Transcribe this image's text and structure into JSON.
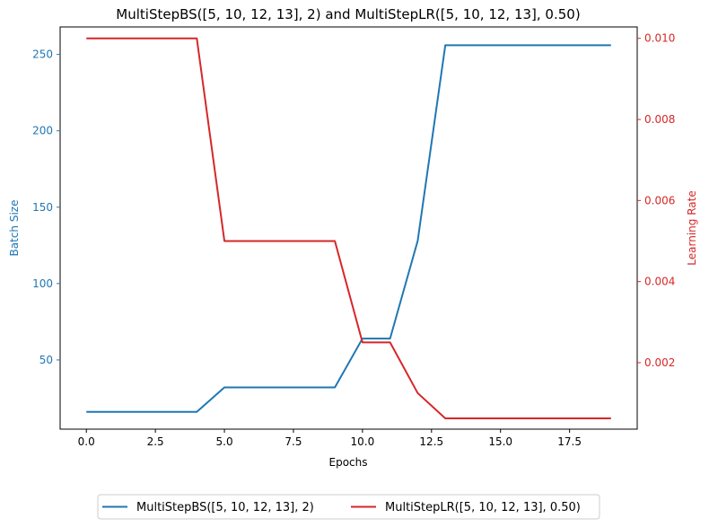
{
  "chart_data": {
    "type": "line",
    "title": "MultiStepBS([5, 10, 12, 13], 2) and MultiStepLR([5, 10, 12, 13], 0.50)",
    "xlabel": "Epochs",
    "ylabel_left": "Batch Size",
    "ylabel_right": "Learning Rate",
    "xlim": [
      -0.95,
      19.95
    ],
    "ylim_left": [
      4.7,
      268.0
    ],
    "ylim_right": [
      0.00036,
      0.010282
    ],
    "xticks": [
      0.0,
      2.5,
      5.0,
      7.5,
      10.0,
      12.5,
      15.0,
      17.5
    ],
    "xtick_labels": [
      "0.0",
      "2.5",
      "5.0",
      "7.5",
      "10.0",
      "12.5",
      "15.0",
      "17.5"
    ],
    "yticks_left": [
      50,
      100,
      150,
      200,
      250
    ],
    "ytick_labels_left": [
      "50",
      "100",
      "150",
      "200",
      "250"
    ],
    "yticks_right": [
      0.002,
      0.004,
      0.006,
      0.008,
      0.01
    ],
    "ytick_labels_right": [
      "0.002",
      "0.004",
      "0.006",
      "0.008",
      "0.010"
    ],
    "legend_position": "bottom-center",
    "grid": false,
    "x": [
      0,
      1,
      2,
      3,
      4,
      5,
      6,
      7,
      8,
      9,
      10,
      11,
      12,
      13,
      14,
      15,
      16,
      17,
      18,
      19
    ],
    "series": [
      {
        "name": "MultiStepBS([5, 10, 12, 13], 2)",
        "axis": "left",
        "color": "#1f77b4",
        "values": [
          16,
          16,
          16,
          16,
          16,
          32,
          32,
          32,
          32,
          32,
          64,
          64,
          128,
          256,
          256,
          256,
          256,
          256,
          256,
          256
        ]
      },
      {
        "name": "MultiStepLR([5, 10, 12, 13], 0.50)",
        "axis": "right",
        "color": "#d62728",
        "values": [
          0.01,
          0.01,
          0.01,
          0.01,
          0.01,
          0.005,
          0.005,
          0.005,
          0.005,
          0.005,
          0.0025,
          0.0025,
          0.00125,
          0.000625,
          0.000625,
          0.000625,
          0.000625,
          0.000625,
          0.000625,
          0.000625
        ]
      }
    ]
  }
}
